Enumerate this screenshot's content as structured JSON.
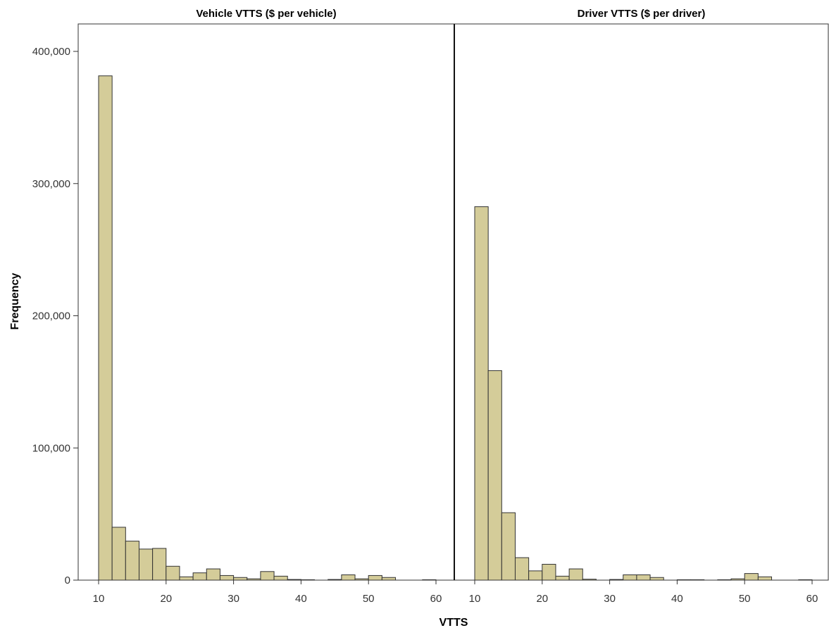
{
  "chart_data": {
    "type": "bar",
    "ylabel": "Frequency",
    "xlabel": "VTTS",
    "ylim": [
      0,
      400000
    ],
    "yticks": [
      0,
      100000,
      200000,
      300000,
      400000
    ],
    "ytick_labels": [
      "0",
      "100,000",
      "200,000",
      "300,000",
      "400,000"
    ],
    "xlim": [
      7.5,
      62
    ],
    "xticks": [
      10,
      20,
      30,
      40,
      50,
      60
    ],
    "xtick_labels": [
      "10",
      "20",
      "30",
      "40",
      "50",
      "60"
    ],
    "grid": false,
    "bar_color": "#d4cc99",
    "bar_edge_color": "#333333",
    "panels": [
      {
        "title": "Vehicle VTTS ($ per vehicle)",
        "bins": [
          {
            "x0": 10,
            "x1": 12,
            "count": 381500
          },
          {
            "x0": 12,
            "x1": 14,
            "count": 40000
          },
          {
            "x0": 14,
            "x1": 16,
            "count": 29500
          },
          {
            "x0": 16,
            "x1": 18,
            "count": 23500
          },
          {
            "x0": 18,
            "x1": 20,
            "count": 24000
          },
          {
            "x0": 20,
            "x1": 22,
            "count": 10500
          },
          {
            "x0": 22,
            "x1": 24,
            "count": 2500
          },
          {
            "x0": 24,
            "x1": 26,
            "count": 5500
          },
          {
            "x0": 26,
            "x1": 28,
            "count": 8500
          },
          {
            "x0": 28,
            "x1": 30,
            "count": 3500
          },
          {
            "x0": 30,
            "x1": 32,
            "count": 2000
          },
          {
            "x0": 32,
            "x1": 34,
            "count": 1000
          },
          {
            "x0": 34,
            "x1": 36,
            "count": 6500
          },
          {
            "x0": 36,
            "x1": 38,
            "count": 3000
          },
          {
            "x0": 38,
            "x1": 40,
            "count": 500
          },
          {
            "x0": 40,
            "x1": 42,
            "count": 300
          },
          {
            "x0": 44,
            "x1": 46,
            "count": 500
          },
          {
            "x0": 46,
            "x1": 48,
            "count": 4000
          },
          {
            "x0": 48,
            "x1": 50,
            "count": 1000
          },
          {
            "x0": 50,
            "x1": 52,
            "count": 3500
          },
          {
            "x0": 52,
            "x1": 54,
            "count": 2000
          },
          {
            "x0": 58,
            "x1": 60,
            "count": 300
          }
        ]
      },
      {
        "title": "Driver VTTS ($ per driver)",
        "bins": [
          {
            "x0": 10,
            "x1": 12,
            "count": 282500
          },
          {
            "x0": 12,
            "x1": 14,
            "count": 158500
          },
          {
            "x0": 14,
            "x1": 16,
            "count": 51000
          },
          {
            "x0": 16,
            "x1": 18,
            "count": 17000
          },
          {
            "x0": 18,
            "x1": 20,
            "count": 7000
          },
          {
            "x0": 20,
            "x1": 22,
            "count": 12000
          },
          {
            "x0": 22,
            "x1": 24,
            "count": 3000
          },
          {
            "x0": 24,
            "x1": 26,
            "count": 8500
          },
          {
            "x0": 26,
            "x1": 28,
            "count": 700
          },
          {
            "x0": 30,
            "x1": 32,
            "count": 500
          },
          {
            "x0": 32,
            "x1": 34,
            "count": 4000
          },
          {
            "x0": 34,
            "x1": 36,
            "count": 4000
          },
          {
            "x0": 36,
            "x1": 38,
            "count": 2000
          },
          {
            "x0": 40,
            "x1": 42,
            "count": 300
          },
          {
            "x0": 42,
            "x1": 44,
            "count": 300
          },
          {
            "x0": 46,
            "x1": 48,
            "count": 300
          },
          {
            "x0": 48,
            "x1": 50,
            "count": 1000
          },
          {
            "x0": 50,
            "x1": 52,
            "count": 5000
          },
          {
            "x0": 52,
            "x1": 54,
            "count": 2500
          },
          {
            "x0": 58,
            "x1": 60,
            "count": 300
          }
        ]
      }
    ]
  }
}
